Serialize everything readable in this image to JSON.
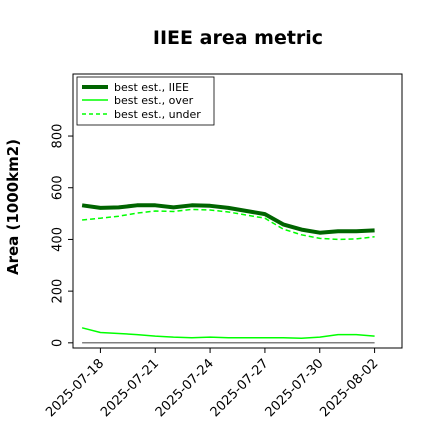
{
  "chart_data": {
    "type": "line",
    "title": "IIEE area metric",
    "xlabel": "",
    "ylabel": "Area (1000km2)",
    "x": [
      "2025-07-17",
      "2025-07-18",
      "2025-07-19",
      "2025-07-20",
      "2025-07-21",
      "2025-07-22",
      "2025-07-23",
      "2025-07-24",
      "2025-07-25",
      "2025-07-26",
      "2025-07-27",
      "2025-07-28",
      "2025-07-29",
      "2025-07-30",
      "2025-07-31",
      "2025-08-01",
      "2025-08-02"
    ],
    "xticks": [
      "2025-07-18",
      "2025-07-21",
      "2025-07-24",
      "2025-07-27",
      "2025-07-30",
      "2025-08-02"
    ],
    "yticks": [
      0,
      200,
      400,
      600,
      800
    ],
    "ylim": [
      -20,
      1040
    ],
    "grid": false,
    "legend_position": "top-left",
    "series": [
      {
        "name": "best est., IIEE",
        "color": "#006400",
        "style": "solid-thick",
        "values": [
          532,
          522,
          524,
          532,
          532,
          524,
          532,
          530,
          522,
          510,
          498,
          458,
          438,
          426,
          432,
          432,
          435
        ]
      },
      {
        "name": "best est., over",
        "color": "#00ff00",
        "style": "solid",
        "values": [
          58,
          40,
          36,
          32,
          26,
          22,
          20,
          22,
          20,
          20,
          20,
          20,
          18,
          22,
          32,
          32,
          26
        ]
      },
      {
        "name": "best est., under",
        "color": "#00ff00",
        "style": "dashed",
        "values": [
          475,
          482,
          490,
          502,
          510,
          508,
          516,
          514,
          506,
          494,
          482,
          440,
          418,
          404,
          400,
          402,
          410
        ]
      },
      {
        "name": "",
        "color": "#808080",
        "style": "solid",
        "values": [
          0,
          0,
          0,
          0,
          0,
          0,
          0,
          0,
          0,
          0,
          0,
          0,
          0,
          0,
          0,
          0,
          0
        ]
      }
    ]
  }
}
